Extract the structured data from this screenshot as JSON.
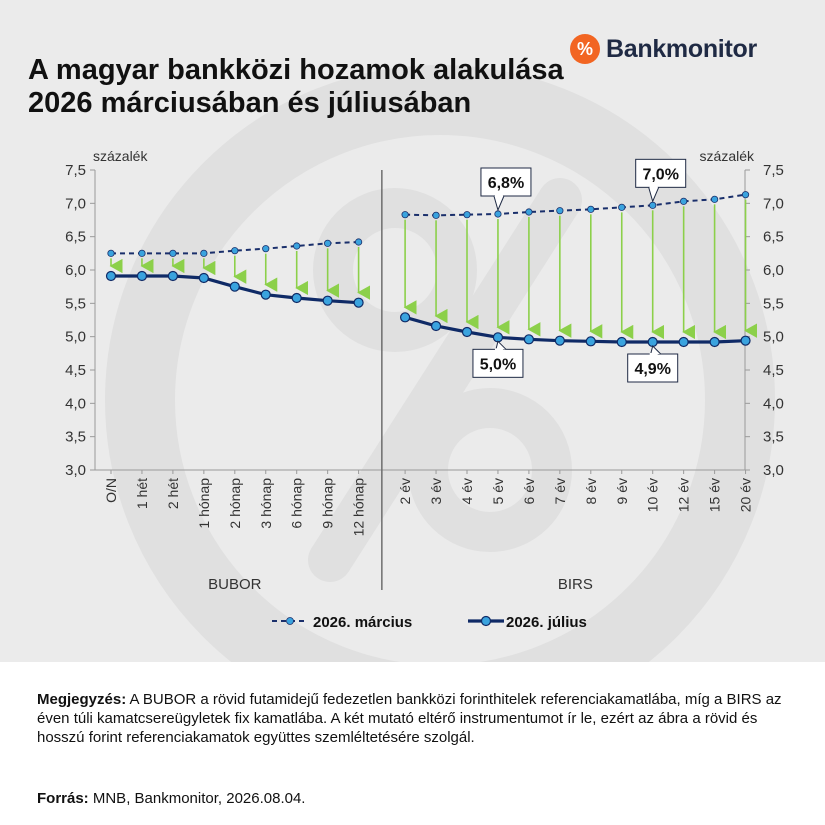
{
  "header": {
    "title": "A magyar bankközi hozamok alakulása 2026 márciusában és júliusában",
    "logo_mark": "%",
    "logo_text": "Bankmonitor"
  },
  "chart_data": {
    "type": "line",
    "unit_label_left": "százalék",
    "unit_label_right": "százalék",
    "ylim": [
      3.0,
      7.5
    ],
    "yticks": [
      "3,0",
      "3,5",
      "4,0",
      "4,5",
      "5,0",
      "5,5",
      "6,0",
      "6,5",
      "7,0",
      "7,5"
    ],
    "groups": [
      {
        "name": "BUBOR",
        "categories": [
          "O/N",
          "1 hét",
          "2 hét",
          "1 hónap",
          "2 hónap",
          "3 hónap",
          "6 hónap",
          "9 hónap",
          "12 hónap"
        ],
        "march": [
          6.25,
          6.25,
          6.25,
          6.25,
          6.29,
          6.32,
          6.36,
          6.4,
          6.42
        ],
        "july": [
          5.91,
          5.91,
          5.91,
          5.88,
          5.75,
          5.63,
          5.58,
          5.54,
          5.51
        ]
      },
      {
        "name": "BIRS",
        "categories": [
          "2 év",
          "3 év",
          "4 év",
          "5 év",
          "6 év",
          "7 év",
          "8 év",
          "9 év",
          "10 év",
          "12 év",
          "15 év",
          "20 év"
        ],
        "march": [
          6.83,
          6.82,
          6.83,
          6.84,
          6.87,
          6.89,
          6.91,
          6.94,
          6.97,
          7.03,
          7.06,
          7.13
        ],
        "july": [
          5.29,
          5.16,
          5.07,
          4.99,
          4.96,
          4.94,
          4.93,
          4.92,
          4.92,
          4.92,
          4.92,
          4.94
        ]
      }
    ],
    "series": [
      {
        "name": "2026. március",
        "style": "dashed",
        "color": "#1a2f6b",
        "marker": "#3aa3de"
      },
      {
        "name": "2026. július",
        "style": "solid",
        "color": "#0f2a66",
        "marker": "#3aa3de"
      }
    ],
    "arrow_color": "#8cd04a",
    "annotations": [
      {
        "text": "6,8%",
        "group": 1,
        "index": 3,
        "series": "march"
      },
      {
        "text": "7,0%",
        "group": 1,
        "index": 8,
        "series": "march"
      },
      {
        "text": "5,0%",
        "group": 1,
        "index": 3,
        "series": "july"
      },
      {
        "text": "4,9%",
        "group": 1,
        "index": 8,
        "series": "july"
      }
    ],
    "grid": false,
    "legend_position": "bottom"
  },
  "footer": {
    "note_label": "Megjegyzés:",
    "note_text": " A BUBOR a rövid futamidejű fedezetlen bankközi forinthitelek referenciakamatlába, míg a BIRS az éven túli kamatcsereügyletek fix kamatlába. A két mutató eltérő instrumentumot ír le, ezért az ábra a rövid és hosszú forint referenciakamatok együttes szemléltetésére szolgál.",
    "source_label": "Forrás:",
    "source_text": " MNB, Bankmonitor, 2026.08.04."
  }
}
